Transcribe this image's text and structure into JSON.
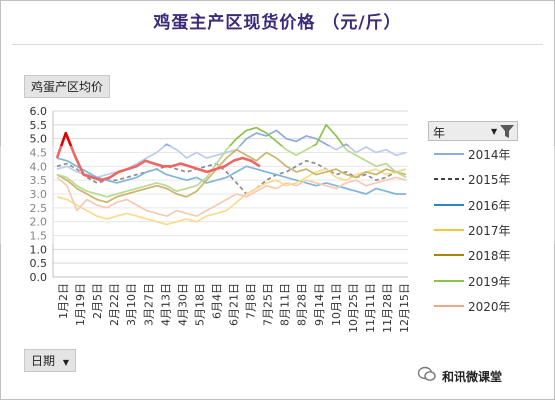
{
  "title": "鸡蛋主产区现货价格 （元/斤）",
  "field_label": "鸡蛋产区均价",
  "legend_header": "年",
  "axis_field_label": "日期",
  "watermark": "和讯微课堂",
  "chart_data": {
    "type": "line",
    "title": "鸡蛋主产区现货价格 （元/斤）",
    "ylabel": "鸡蛋产区均价",
    "xlabel": "日期",
    "ylim": [
      0,
      6
    ],
    "yticks": [
      "0.0",
      "0.5",
      "1.0",
      "1.5",
      "2.0",
      "2.5",
      "3.0",
      "3.5",
      "4.0",
      "4.5",
      "5.0",
      "5.5",
      "6.0"
    ],
    "xticks": [
      "1月2日",
      "1月19日",
      "2月5日",
      "2月22日",
      "3月10日",
      "3月27日",
      "4月13日",
      "4月30日",
      "5月18日",
      "6月4日",
      "6月21日",
      "7月8日",
      "7月25日",
      "8月11日",
      "8月28日",
      "9月14日",
      "10月1日",
      "10月25日",
      "11月11日",
      "11月28日",
      "12月15日"
    ],
    "legend_placement": "right",
    "grid": true,
    "series": [
      {
        "name": "2014年",
        "color": "#8faadc",
        "values": [
          3.9,
          4.0,
          3.8,
          3.7,
          3.6,
          3.7,
          3.8,
          3.9,
          4.1,
          4.3,
          4.5,
          4.8,
          4.6,
          4.3,
          4.5,
          4.3,
          4.4,
          4.5,
          4.6,
          5.0,
          5.2,
          5.1,
          5.3,
          5.0,
          4.9,
          5.1,
          5.0,
          4.8,
          4.6,
          4.8,
          4.5,
          4.7,
          4.5,
          4.6,
          4.4,
          4.5
        ]
      },
      {
        "name": "2015年",
        "color": "#404040",
        "dash": true,
        "values": [
          4.0,
          4.1,
          3.9,
          3.6,
          3.4,
          3.5,
          3.5,
          3.6,
          3.7,
          3.8,
          3.9,
          4.0,
          3.9,
          3.8,
          3.9,
          4.0,
          4.1,
          3.8,
          3.4,
          3.0,
          3.2,
          3.5,
          3.7,
          3.8,
          4.0,
          4.2,
          4.1,
          3.9,
          3.7,
          3.8,
          3.6,
          3.7,
          3.5,
          3.6,
          3.8,
          3.9
        ]
      },
      {
        "name": "2016年",
        "color": "#2e86c1",
        "values": [
          4.3,
          4.2,
          4.0,
          3.8,
          3.6,
          3.5,
          3.4,
          3.5,
          3.6,
          3.8,
          3.9,
          3.7,
          3.6,
          3.5,
          3.6,
          3.4,
          3.5,
          3.6,
          3.8,
          4.0,
          3.9,
          3.8,
          3.7,
          3.6,
          3.5,
          3.4,
          3.3,
          3.4,
          3.3,
          3.2,
          3.1,
          3.0,
          3.2,
          3.1,
          3.0,
          3.0
        ]
      },
      {
        "name": "2017年",
        "color": "#f4c542",
        "values": [
          2.9,
          2.8,
          2.6,
          2.4,
          2.2,
          2.1,
          2.2,
          2.3,
          2.2,
          2.1,
          2.0,
          1.9,
          2.0,
          2.1,
          2.0,
          2.2,
          2.3,
          2.4,
          2.7,
          3.0,
          3.2,
          3.4,
          3.5,
          3.3,
          3.4,
          3.6,
          3.8,
          3.9,
          3.6,
          3.5,
          3.7,
          3.8,
          3.9,
          3.7,
          3.8,
          3.9
        ]
      },
      {
        "name": "2018年",
        "color": "#a9840a",
        "values": [
          3.7,
          3.5,
          3.2,
          3.0,
          2.8,
          2.7,
          2.9,
          3.0,
          3.1,
          3.2,
          3.3,
          3.2,
          3.0,
          2.9,
          3.1,
          3.5,
          3.9,
          4.3,
          4.6,
          4.4,
          4.2,
          4.5,
          4.3,
          4.0,
          3.8,
          3.9,
          3.7,
          3.8,
          3.9,
          3.7,
          3.6,
          3.8,
          3.7,
          3.9,
          3.8,
          3.7
        ]
      },
      {
        "name": "2019年",
        "color": "#8bc34a",
        "values": [
          3.7,
          3.6,
          3.3,
          3.1,
          3.0,
          2.9,
          3.0,
          3.1,
          3.2,
          3.3,
          3.4,
          3.3,
          3.1,
          3.2,
          3.3,
          3.6,
          4.1,
          4.6,
          5.0,
          5.3,
          5.4,
          5.2,
          4.9,
          4.6,
          4.4,
          4.6,
          4.8,
          5.5,
          5.1,
          4.6,
          4.4,
          4.2,
          4.0,
          4.1,
          3.8,
          3.6
        ]
      },
      {
        "name": "2020年",
        "color": "#f4a582",
        "values": [
          3.6,
          3.3,
          2.4,
          2.8,
          2.6,
          2.5,
          2.7,
          2.8,
          2.6,
          2.4,
          2.3,
          2.2,
          2.4,
          2.3,
          2.2,
          2.4,
          2.6,
          2.8,
          3.0,
          2.9,
          3.1,
          3.3,
          3.2,
          3.4,
          3.3,
          3.5,
          3.4,
          3.3,
          3.2,
          3.4,
          3.5,
          3.3,
          3.4,
          3.5,
          3.6,
          3.5
        ]
      }
    ],
    "highlight": {
      "color": "#e00000",
      "values": [
        4.3,
        5.2,
        4.4,
        3.7,
        3.6,
        3.5,
        3.6,
        3.8,
        3.9,
        4.0,
        4.2,
        4.1,
        4.0,
        4.0,
        4.1,
        4.0,
        3.9,
        3.8,
        3.9,
        4.0,
        4.2,
        4.3,
        4.2,
        4.0
      ]
    }
  }
}
